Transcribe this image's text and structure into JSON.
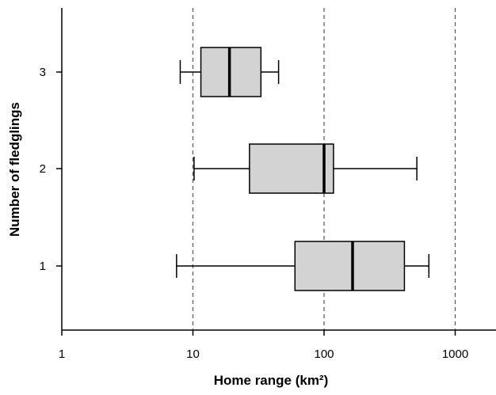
{
  "chart_data": {
    "type": "boxplot",
    "orientation": "horizontal",
    "xlabel": "Home range (km²)",
    "ylabel": "Number of fledglings",
    "x_scale": "log",
    "xlim": [
      1,
      2000
    ],
    "x_ticks": [
      1,
      10,
      100,
      1000
    ],
    "x_tick_labels": [
      "1",
      "10",
      "100",
      "1000"
    ],
    "vertical_reference_lines": [
      10,
      100,
      1000
    ],
    "reference_line_style": "dashed",
    "categories": [
      "1",
      "2",
      "3"
    ],
    "box_color": "#d3d3d3",
    "boxes": [
      {
        "category": "1",
        "whisker_low": 7.5,
        "q1": 60,
        "median": 165,
        "q3": 410,
        "whisker_high": 630
      },
      {
        "category": "2",
        "whisker_low": 10.2,
        "q1": 27,
        "median": 100,
        "q3": 118,
        "whisker_high": 510
      },
      {
        "category": "3",
        "whisker_low": 8,
        "q1": 11.5,
        "median": 19,
        "q3": 33,
        "whisker_high": 45
      }
    ]
  }
}
